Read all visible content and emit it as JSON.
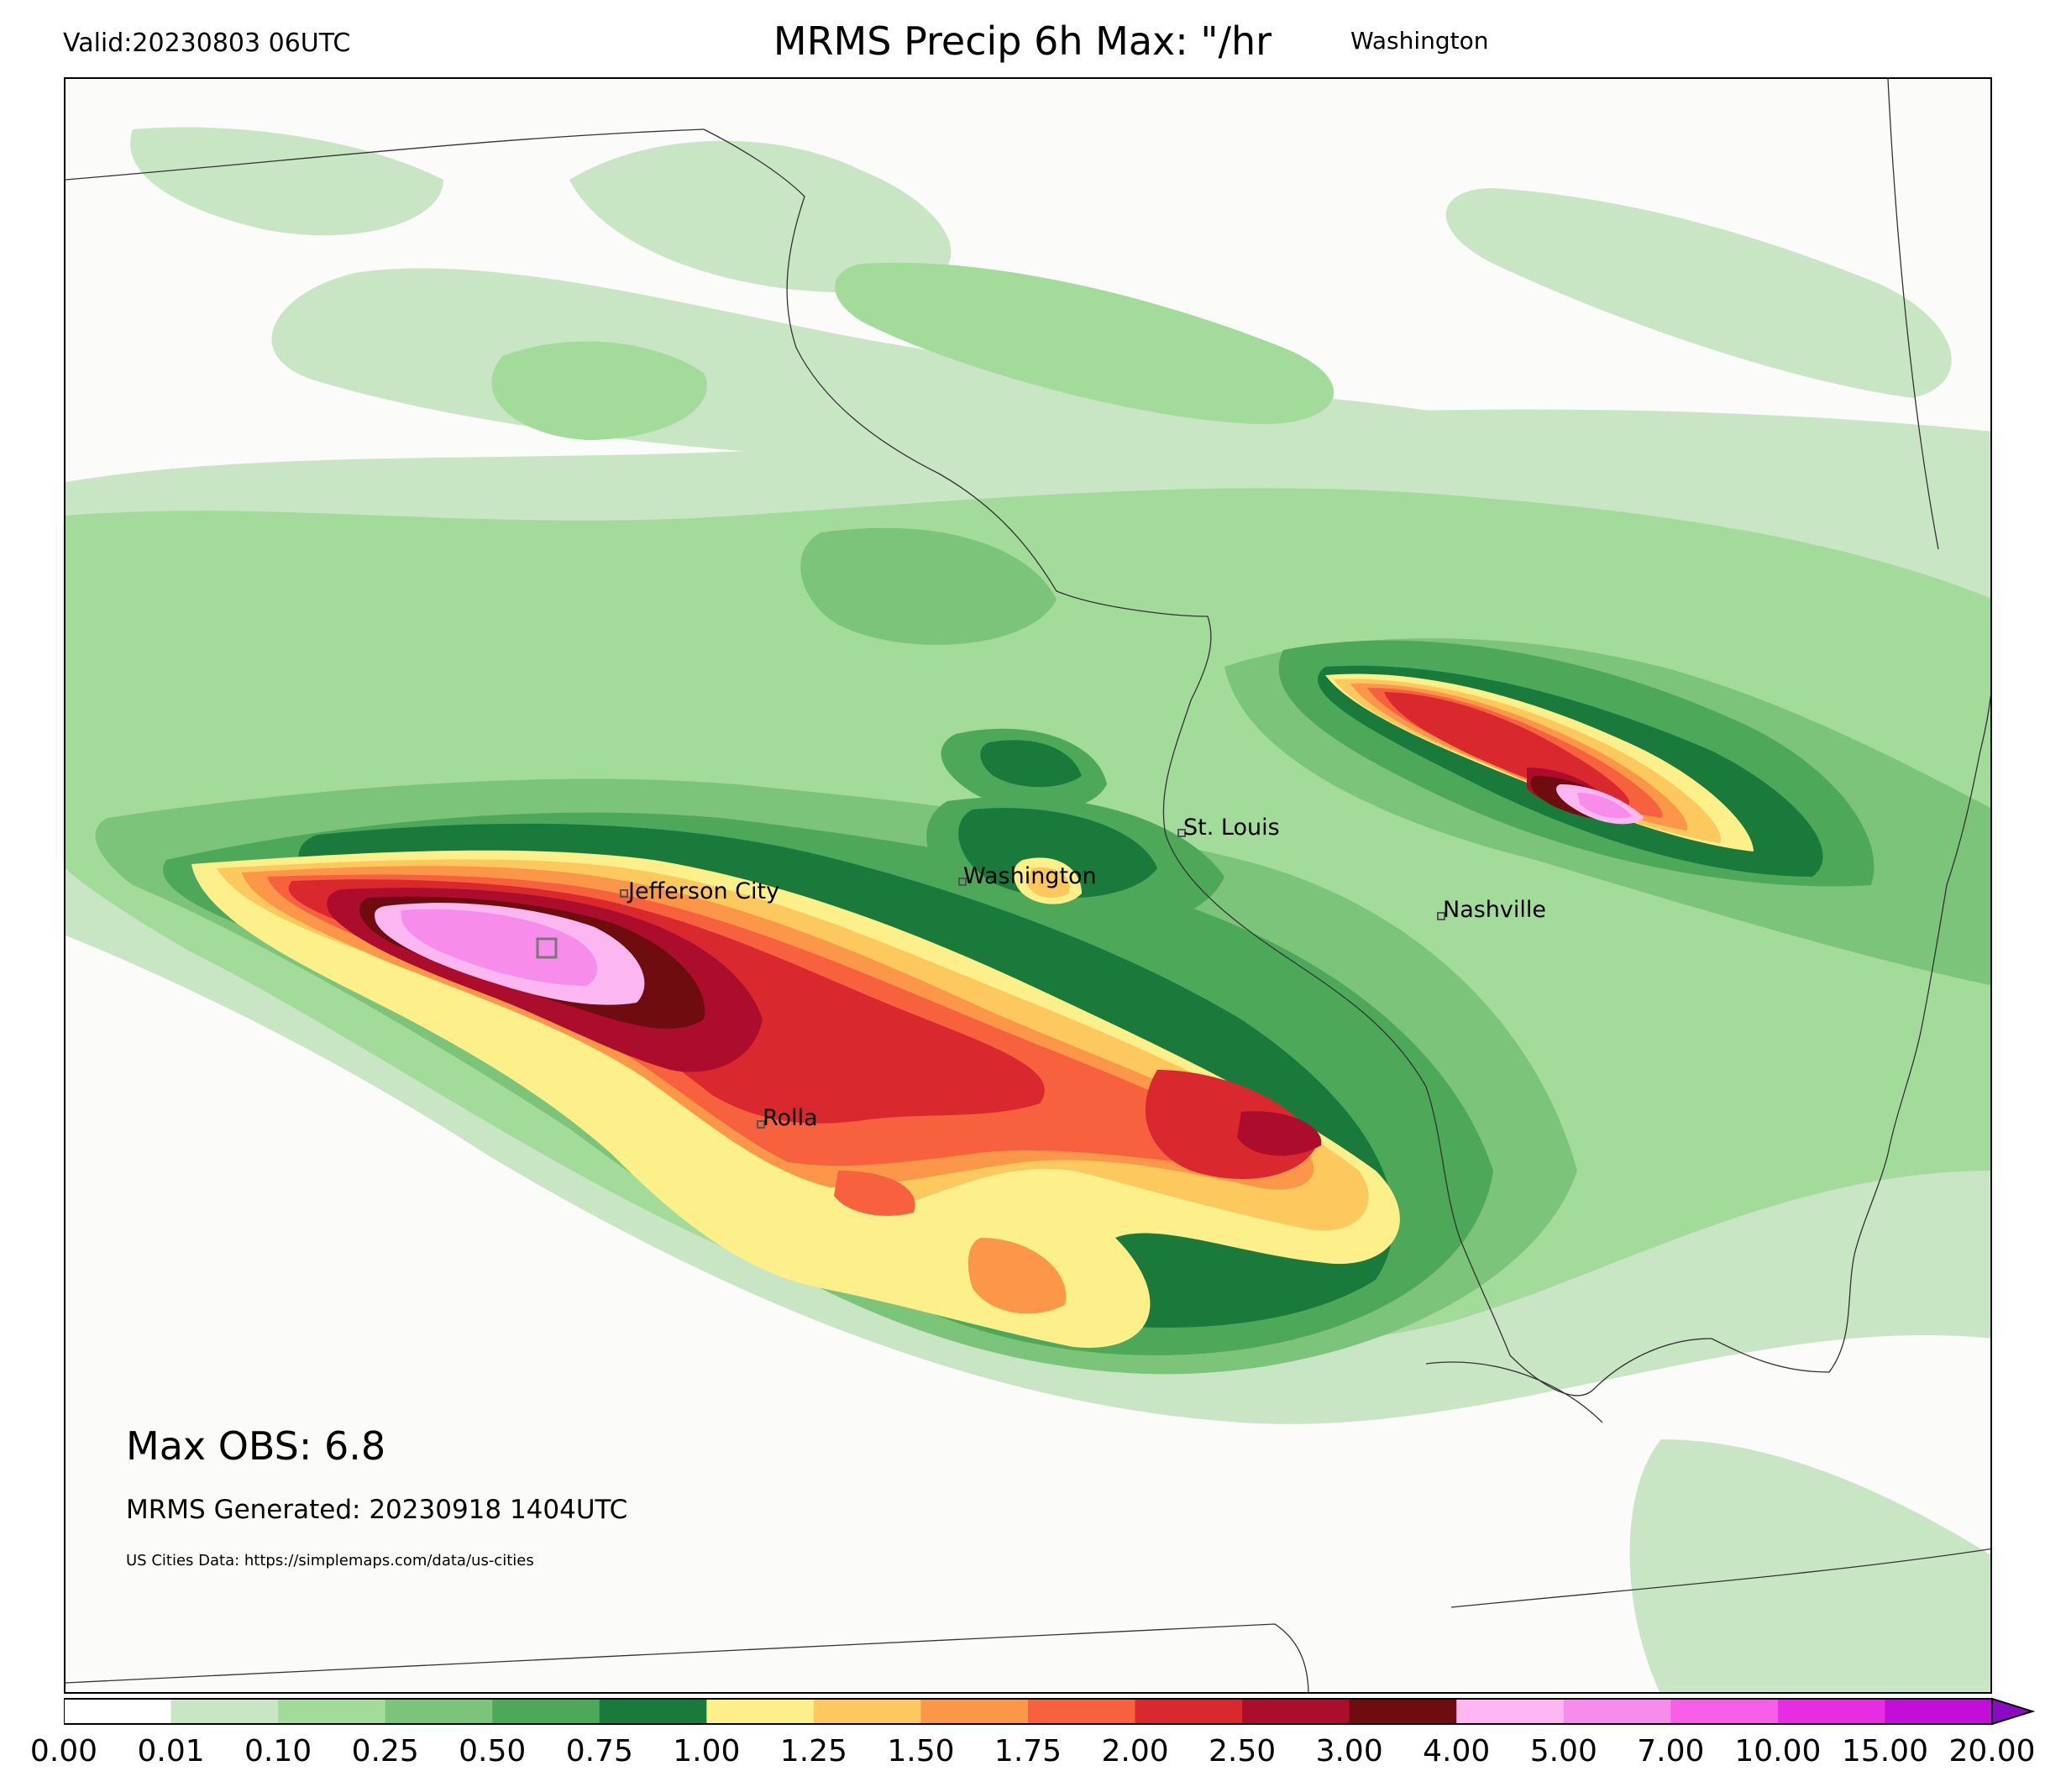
{
  "header": {
    "valid": "Valid:20230803 06UTC",
    "title": "MRMS Precip 6h Max: \"/hr",
    "title_place": "Washington"
  },
  "annotations": {
    "max_obs": "Max OBS: 6.8",
    "generated": "MRMS Generated: 20230918 1404UTC",
    "city_source": "US Cities Data: https://simplemaps.com/data/us-cities"
  },
  "cities": [
    {
      "name": "Jefferson City"
    },
    {
      "name": "Washington"
    },
    {
      "name": "St. Louis"
    },
    {
      "name": "Nashville"
    },
    {
      "name": "Rolla"
    }
  ],
  "colorbar": {
    "unit": "\"/hr",
    "extend": "max",
    "ticks": [
      "0.00",
      "0.01",
      "0.10",
      "0.25",
      "0.50",
      "0.75",
      "1.00",
      "1.25",
      "1.50",
      "1.75",
      "2.00",
      "2.50",
      "3.00",
      "4.00",
      "5.00",
      "7.00",
      "10.00",
      "15.00",
      "20.00"
    ],
    "colors": [
      "#ffffff",
      "#c9e6c4",
      "#a3dc9a",
      "#7cc47a",
      "#4ea85a",
      "#1a7a3c",
      "#fdf08a",
      "#fdc95e",
      "#fc9649",
      "#f8613d",
      "#d9282e",
      "#ad0d2c",
      "#6e0c10",
      "#fcb7f1",
      "#f88ceb",
      "#f65ee8",
      "#e82ce4",
      "#c20ed8",
      "#8b0bc4"
    ]
  },
  "legend_levels": {
    "l001": "#c9e6c4",
    "l010": "#a3dc9a",
    "l025": "#7cc47a",
    "l050": "#4ea85a",
    "l075": "#1a7a3c",
    "l100": "#fdf08a",
    "l125": "#fdc95e",
    "l150": "#fc9649",
    "l175": "#f8613d",
    "l200": "#d9282e",
    "l250": "#ad0d2c",
    "l300": "#6e0c10",
    "l400": "#fcb7f1",
    "l500": "#f88ceb"
  }
}
